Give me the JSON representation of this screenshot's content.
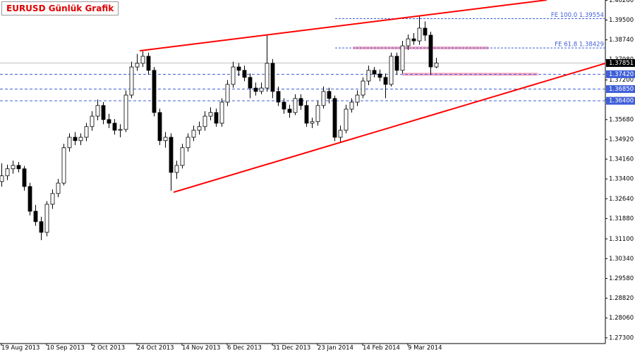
{
  "chart_data": {
    "type": "candlestick",
    "title": "EURUSD Günlük Grafik",
    "up_color": "#ffffff",
    "down_color": "#000000",
    "outline_color": "#000000",
    "ylim": [
      1.2708,
      1.4027
    ],
    "xlim": [
      0,
      106.5
    ],
    "yticks": [
      {
        "value": 1.273,
        "label": "1.27300"
      },
      {
        "value": 1.2806,
        "label": "1.28060"
      },
      {
        "value": 1.2882,
        "label": "1.28820"
      },
      {
        "value": 1.2958,
        "label": "1.29580"
      },
      {
        "value": 1.3034,
        "label": "1.30340"
      },
      {
        "value": 1.311,
        "label": "1.31100"
      },
      {
        "value": 1.3188,
        "label": "1.31880"
      },
      {
        "value": 1.3264,
        "label": "1.32640"
      },
      {
        "value": 1.334,
        "label": "1.33400"
      },
      {
        "value": 1.3416,
        "label": "1.34160"
      },
      {
        "value": 1.3492,
        "label": "1.34920"
      },
      {
        "value": 1.3568,
        "label": "1.35680"
      },
      {
        "value": 1.3644,
        "label": "1.36440"
      },
      {
        "value": 1.372,
        "label": "1.37200"
      },
      {
        "value": 1.3798,
        "label": "1.37980"
      },
      {
        "value": 1.3874,
        "label": "1.38740"
      },
      {
        "value": 1.395,
        "label": "1.39500"
      },
      {
        "value": 1.4026,
        "label": "1.40260"
      }
    ],
    "xticks": [
      {
        "value": 0,
        "label": "19 Aug 2013"
      },
      {
        "value": 8,
        "label": "10 Sep 2013"
      },
      {
        "value": 16,
        "label": "2 Oct 2013"
      },
      {
        "value": 24,
        "label": "24 Oct 2013"
      },
      {
        "value": 32,
        "label": "14 Nov 2013"
      },
      {
        "value": 40,
        "label": "6 Dec 2013"
      },
      {
        "value": 48,
        "label": "31 Dec 2013"
      },
      {
        "value": 56,
        "label": "23 Jan 2014"
      },
      {
        "value": 64,
        "label": "14 Feb 2014"
      },
      {
        "value": 72,
        "label": "9 Mar 2014"
      }
    ],
    "candles": [
      [
        1.333,
        1.34,
        1.331,
        1.3352
      ],
      [
        1.3352,
        1.3395,
        1.3335,
        1.3379
      ],
      [
        1.3379,
        1.341,
        1.336,
        1.3392
      ],
      [
        1.3392,
        1.3405,
        1.3365,
        1.3379
      ],
      [
        1.3379,
        1.339,
        1.3295,
        1.3311
      ],
      [
        1.3311,
        1.3325,
        1.32,
        1.3216
      ],
      [
        1.3216,
        1.324,
        1.316,
        1.3176
      ],
      [
        1.3176,
        1.3195,
        1.3105,
        1.3135
      ],
      [
        1.3135,
        1.3255,
        1.312,
        1.3243
      ],
      [
        1.3243,
        1.33,
        1.3225,
        1.3284
      ],
      [
        1.3284,
        1.334,
        1.327,
        1.3324
      ],
      [
        1.3324,
        1.3475,
        1.3315,
        1.346
      ],
      [
        1.346,
        1.3515,
        1.3445,
        1.35
      ],
      [
        1.35,
        1.352,
        1.347,
        1.3487
      ],
      [
        1.3487,
        1.3515,
        1.347,
        1.35
      ],
      [
        1.35,
        1.3555,
        1.3485,
        1.3541
      ],
      [
        1.3541,
        1.36,
        1.3525,
        1.3581
      ],
      [
        1.3581,
        1.3645,
        1.3565,
        1.3622
      ],
      [
        1.3622,
        1.3635,
        1.355,
        1.3568
      ],
      [
        1.3568,
        1.359,
        1.3535,
        1.3554
      ],
      [
        1.3554,
        1.357,
        1.351,
        1.3527
      ],
      [
        1.3527,
        1.355,
        1.35,
        1.353
      ],
      [
        1.353,
        1.368,
        1.352,
        1.3662
      ],
      [
        1.3662,
        1.379,
        1.365,
        1.377
      ],
      [
        1.377,
        1.382,
        1.3755,
        1.3784
      ],
      [
        1.3784,
        1.383,
        1.377,
        1.3811
      ],
      [
        1.3811,
        1.3825,
        1.374,
        1.3757
      ],
      [
        1.3757,
        1.377,
        1.358,
        1.3595
      ],
      [
        1.3595,
        1.361,
        1.347,
        1.3487
      ],
      [
        1.3487,
        1.352,
        1.346,
        1.35
      ],
      [
        1.35,
        1.3515,
        1.3295,
        1.3365
      ],
      [
        1.3365,
        1.341,
        1.334,
        1.3392
      ],
      [
        1.3392,
        1.3475,
        1.338,
        1.346
      ],
      [
        1.346,
        1.3515,
        1.3445,
        1.35
      ],
      [
        1.35,
        1.3545,
        1.3485,
        1.3527
      ],
      [
        1.3527,
        1.356,
        1.351,
        1.3541
      ],
      [
        1.3541,
        1.36,
        1.3525,
        1.3581
      ],
      [
        1.3581,
        1.3615,
        1.3565,
        1.3595
      ],
      [
        1.3595,
        1.361,
        1.354,
        1.3554
      ],
      [
        1.3554,
        1.365,
        1.354,
        1.3635
      ],
      [
        1.3635,
        1.372,
        1.362,
        1.3703
      ],
      [
        1.3703,
        1.379,
        1.369,
        1.377
      ],
      [
        1.377,
        1.3785,
        1.3735,
        1.3757
      ],
      [
        1.3757,
        1.3775,
        1.3715,
        1.373
      ],
      [
        1.373,
        1.3745,
        1.365,
        1.3689
      ],
      [
        1.3689,
        1.371,
        1.366,
        1.3676
      ],
      [
        1.3676,
        1.371,
        1.3665,
        1.3689
      ],
      [
        1.3689,
        1.3893,
        1.3675,
        1.3784
      ],
      [
        1.3784,
        1.38,
        1.365,
        1.3676
      ],
      [
        1.3676,
        1.3695,
        1.362,
        1.3635
      ],
      [
        1.3635,
        1.365,
        1.359,
        1.3608
      ],
      [
        1.3608,
        1.3625,
        1.3575,
        1.3595
      ],
      [
        1.3595,
        1.3665,
        1.3585,
        1.3649
      ],
      [
        1.3649,
        1.3665,
        1.3605,
        1.3622
      ],
      [
        1.3622,
        1.364,
        1.354,
        1.3554
      ],
      [
        1.3554,
        1.3575,
        1.3535,
        1.356
      ],
      [
        1.356,
        1.364,
        1.3545,
        1.3622
      ],
      [
        1.3622,
        1.3695,
        1.361,
        1.3676
      ],
      [
        1.3676,
        1.369,
        1.363,
        1.3649
      ],
      [
        1.3649,
        1.366,
        1.3485,
        1.35
      ],
      [
        1.35,
        1.3545,
        1.348,
        1.3527
      ],
      [
        1.3527,
        1.3625,
        1.3515,
        1.3608
      ],
      [
        1.3608,
        1.365,
        1.3595,
        1.3635
      ],
      [
        1.3635,
        1.368,
        1.362,
        1.3662
      ],
      [
        1.3662,
        1.373,
        1.365,
        1.3716
      ],
      [
        1.3716,
        1.3775,
        1.37,
        1.3757
      ],
      [
        1.3757,
        1.377,
        1.373,
        1.3743
      ],
      [
        1.3743,
        1.376,
        1.3715,
        1.373
      ],
      [
        1.373,
        1.3745,
        1.365,
        1.3703
      ],
      [
        1.3703,
        1.3825,
        1.3695,
        1.3811
      ],
      [
        1.3811,
        1.3825,
        1.374,
        1.3757
      ],
      [
        1.3757,
        1.387,
        1.3745,
        1.3851
      ],
      [
        1.3851,
        1.3895,
        1.3835,
        1.3878
      ],
      [
        1.3878,
        1.39,
        1.3855,
        1.387
      ],
      [
        1.387,
        1.3967,
        1.3855,
        1.3919
      ],
      [
        1.3919,
        1.3945,
        1.387,
        1.3892
      ],
      [
        1.3892,
        1.3905,
        1.374,
        1.377
      ],
      [
        1.377,
        1.3805,
        1.3765,
        1.3785
      ]
    ],
    "price_lines": [
      {
        "value": 1.37851,
        "label": "1.37851",
        "color": "#c0c0c0",
        "box": "#000000"
      },
      {
        "value": 1.3742,
        "label": "1.37420",
        "color": "#3f5fd8",
        "box": "#3f5fd8"
      },
      {
        "value": 1.3685,
        "label": "1.36850",
        "color": "#3f5fd8",
        "box": "#3f5fd8"
      },
      {
        "value": 1.364,
        "label": "1.36400",
        "color": "#3f5fd8",
        "box": "#3f5fd8"
      }
    ],
    "fib_levels": [
      {
        "value": 1.39554,
        "label": "FE 100.0 1.39554",
        "color": "#3f5fd8"
      },
      {
        "value": 1.38429,
        "label": "FE 61.8 1.38429",
        "color": "#3f5fd8"
      }
    ],
    "zones": [
      {
        "value": 1.3843,
        "from": 62.3,
        "to": 86.3,
        "color": "#f4a6c0"
      },
      {
        "value": 1.3742,
        "from": 71,
        "to": 95,
        "color": "#f4a6c0"
      }
    ],
    "trendlines": [
      {
        "color": "#ff0000",
        "x": [
          24.5,
          96.6
        ],
        "y": [
          1.3832,
          1.4027
        ]
      },
      {
        "color": "#ff0000",
        "x": [
          30.5,
          107
        ],
        "y": [
          1.3289,
          1.3784
        ]
      }
    ]
  }
}
